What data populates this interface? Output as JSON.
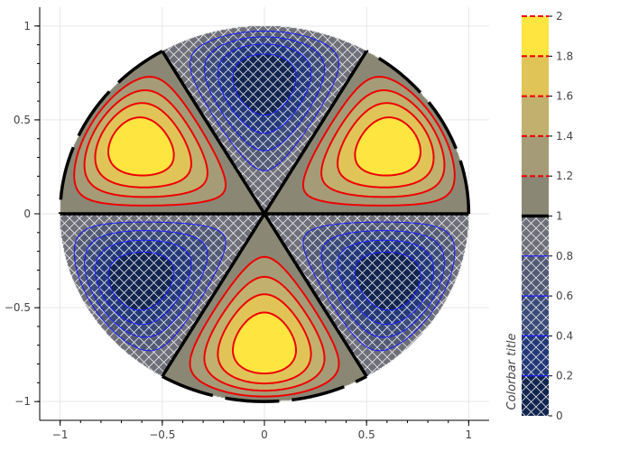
{
  "chart_data": {
    "type": "contour",
    "title": "",
    "description": "Filled contour plot inside the unit circle with three-fold symmetry: three positive lobes (yellow, up to 2) and three negative lobes (dark blue, down to 0), boundary level 1 drawn as thick black line.",
    "xlim": [
      -1.1,
      1.1
    ],
    "ylim": [
      -1.1,
      1.1
    ],
    "x_ticks": [
      -1,
      -0.5,
      0,
      0.5,
      1
    ],
    "x_tick_labels": [
      "−1",
      "−0.5",
      "0",
      "0.5",
      "1"
    ],
    "y_ticks": [
      -1,
      -0.5,
      0,
      0.5,
      1
    ],
    "y_tick_labels": [
      "−1",
      "−0.5",
      "0",
      "0.5",
      "1"
    ],
    "grid": true,
    "domain_radius": 1,
    "positive_lobe_angles_deg": [
      150,
      30,
      270
    ],
    "negative_lobe_angles_deg": [
      90,
      210,
      330
    ],
    "negative_region_hatched": true,
    "fill_levels": [
      0,
      0.2,
      0.4,
      0.6,
      0.8,
      1.0,
      1.2,
      1.4,
      1.6,
      1.8,
      2.0
    ],
    "fill_colors": [
      "#12254f",
      "#233876",
      "#3b4b78",
      "#525a74",
      "#6e6f78",
      "#8b8775",
      "#a59c77",
      "#c2b06e",
      "#e1c457",
      "#ffe53f"
    ],
    "line_levels_low": [
      0.2,
      0.4,
      0.6,
      0.8
    ],
    "line_levels_high": [
      1.2,
      1.4,
      1.6,
      1.8,
      2.0
    ],
    "zero_level": 1,
    "colorbar": {
      "title": "Colorbar title",
      "ticks": [
        0,
        0.2,
        0.4,
        0.6,
        0.8,
        1,
        1.2,
        1.4,
        1.6,
        1.8,
        2
      ],
      "tick_labels": [
        "0",
        "0.2",
        "0.4",
        "0.6",
        "0.8",
        "1",
        "1.2",
        "1.4",
        "1.6",
        "1.8",
        "2"
      ]
    },
    "colors": {
      "low_line": "#1a1aff",
      "high_line": "#ee0000",
      "zero_line": "#000000",
      "hatch": "#ffffff",
      "outside": "#ffffff"
    }
  }
}
